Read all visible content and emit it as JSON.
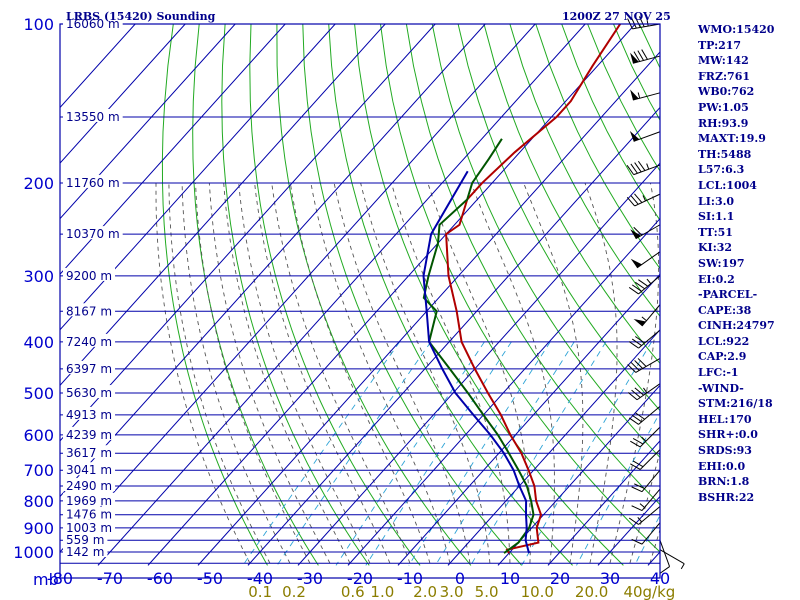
{
  "header": {
    "station": "LRBS (15420) Sounding",
    "time": "1200Z 27 NOV 25"
  },
  "chart_data": {
    "type": "skew-t",
    "y_axis": {
      "unit_label": "mb",
      "pressure_ticks": [
        100,
        200,
        300,
        400,
        500,
        600,
        700,
        800,
        900,
        1000
      ],
      "range_mb": [
        100,
        1050
      ]
    },
    "x_axis": {
      "temperature_ticks": [
        -80,
        -70,
        -60,
        -50,
        -40,
        -30,
        -20,
        -10,
        0,
        10,
        20,
        30,
        40
      ],
      "range_c": [
        -80,
        40
      ],
      "mixing_ratio_labels": [
        "0.1",
        "0.2",
        "0.6",
        "1.0",
        "2.0",
        "3.0",
        "5.0",
        "10.0",
        "20.0",
        "40g/kg"
      ]
    },
    "heights": [
      {
        "p": 100,
        "label": "16060 m"
      },
      {
        "p": 150,
        "label": "13550 m"
      },
      {
        "p": 200,
        "label": "11760 m"
      },
      {
        "p": 250,
        "label": "10370 m"
      },
      {
        "p": 300,
        "label": "9200 m"
      },
      {
        "p": 350,
        "label": "8167 m"
      },
      {
        "p": 400,
        "label": "7240 m"
      },
      {
        "p": 450,
        "label": "6397 m"
      },
      {
        "p": 500,
        "label": "5630 m"
      },
      {
        "p": 550,
        "label": "4913 m"
      },
      {
        "p": 600,
        "label": "4239 m"
      },
      {
        "p": 650,
        "label": "3617 m"
      },
      {
        "p": 700,
        "label": "3041 m"
      },
      {
        "p": 750,
        "label": "2490 m"
      },
      {
        "p": 800,
        "label": "1969 m"
      },
      {
        "p": 850,
        "label": "1476 m"
      },
      {
        "p": 900,
        "label": "1003 m"
      },
      {
        "p": 950,
        "label": "559 m"
      },
      {
        "p": 1000,
        "label": "142 m"
      }
    ],
    "series": [
      {
        "name": "temperature",
        "color": "#b00000",
        "points": [
          [
            100,
            -63
          ],
          [
            120,
            -61
          ],
          [
            140,
            -59
          ],
          [
            150,
            -59
          ],
          [
            175,
            -61
          ],
          [
            200,
            -62
          ],
          [
            215,
            -62
          ],
          [
            240,
            -59
          ],
          [
            250,
            -60
          ],
          [
            300,
            -52
          ],
          [
            350,
            -44
          ],
          [
            400,
            -37.5
          ],
          [
            450,
            -30
          ],
          [
            500,
            -23
          ],
          [
            550,
            -16.5
          ],
          [
            600,
            -11
          ],
          [
            650,
            -5.5
          ],
          [
            700,
            -1
          ],
          [
            750,
            3
          ],
          [
            800,
            6
          ],
          [
            850,
            9.5
          ],
          [
            900,
            11
          ],
          [
            960,
            14
          ],
          [
            990,
            9
          ],
          [
            1005,
            10
          ]
        ]
      },
      {
        "name": "dewpoint",
        "color": "#005500",
        "points": [
          [
            165,
            -66
          ],
          [
            180,
            -65
          ],
          [
            200,
            -64
          ],
          [
            215,
            -62
          ],
          [
            240,
            -63
          ],
          [
            260,
            -60
          ],
          [
            300,
            -56
          ],
          [
            330,
            -53
          ],
          [
            350,
            -48
          ],
          [
            400,
            -44
          ],
          [
            450,
            -35
          ],
          [
            500,
            -27
          ],
          [
            550,
            -20
          ],
          [
            600,
            -13.5
          ],
          [
            650,
            -8
          ],
          [
            700,
            -3
          ],
          [
            750,
            1.5
          ],
          [
            800,
            5
          ],
          [
            850,
            8
          ],
          [
            900,
            9.5
          ],
          [
            960,
            10
          ],
          [
            1005,
            9
          ]
        ]
      },
      {
        "name": "parcel",
        "color": "#0000aa",
        "points": [
          [
            190,
            -67
          ],
          [
            250,
            -63
          ],
          [
            300,
            -57
          ],
          [
            350,
            -50
          ],
          [
            400,
            -44
          ],
          [
            450,
            -36.5
          ],
          [
            500,
            -29.5
          ],
          [
            550,
            -22
          ],
          [
            600,
            -15
          ],
          [
            650,
            -9
          ],
          [
            700,
            -4
          ],
          [
            750,
            0
          ],
          [
            800,
            4
          ],
          [
            850,
            6.5
          ],
          [
            900,
            9
          ],
          [
            950,
            11
          ],
          [
            1005,
            14
          ]
        ]
      }
    ],
    "winds": [
      {
        "p": 100,
        "dir": 260,
        "spd": 45
      },
      {
        "p": 115,
        "dir": 255,
        "spd": 80
      },
      {
        "p": 135,
        "dir": 255,
        "spd": 55
      },
      {
        "p": 160,
        "dir": 250,
        "spd": 50
      },
      {
        "p": 185,
        "dir": 250,
        "spd": 45
      },
      {
        "p": 210,
        "dir": 245,
        "spd": 35
      },
      {
        "p": 240,
        "dir": 240,
        "spd": 60
      },
      {
        "p": 270,
        "dir": 235,
        "spd": 50
      },
      {
        "p": 300,
        "dir": 230,
        "spd": 45
      },
      {
        "p": 340,
        "dir": 220,
        "spd": 55
      },
      {
        "p": 380,
        "dir": 230,
        "spd": 30
      },
      {
        "p": 430,
        "dir": 240,
        "spd": 40
      },
      {
        "p": 480,
        "dir": 235,
        "spd": 35
      },
      {
        "p": 530,
        "dir": 230,
        "spd": 30
      },
      {
        "p": 580,
        "dir": 225,
        "spd": 25
      },
      {
        "p": 640,
        "dir": 225,
        "spd": 20
      },
      {
        "p": 700,
        "dir": 220,
        "spd": 20
      },
      {
        "p": 760,
        "dir": 220,
        "spd": 15
      },
      {
        "p": 820,
        "dir": 230,
        "spd": 15
      },
      {
        "p": 880,
        "dir": 220,
        "spd": 10
      },
      {
        "p": 950,
        "dir": 160,
        "spd": 10
      },
      {
        "p": 990,
        "dir": 120,
        "spd": 5
      }
    ]
  },
  "indices": [
    "WMO:15420",
    "TP:217",
    "MW:142",
    "FRZ:761",
    "WB0:762",
    "PW:1.05",
    "RH:93.9",
    "MAXT:19.9",
    "TH:5488",
    "L57:6.3",
    "LCL:1004",
    "LI:3.0",
    "SI:1.1",
    "TT:51",
    "KI:32",
    "SW:197",
    "EI:0.2",
    "-PARCEL-",
    "CAPE:38",
    "CINH:24797",
    "LCL:922",
    "CAP:2.9",
    "LFC:-1",
    "-WIND-",
    "STM:216/18",
    "HEL:170",
    "SHR+:0.0",
    "SRDS:93",
    "EHI:0.0",
    "BRN:1.8",
    "BSHR:22"
  ]
}
